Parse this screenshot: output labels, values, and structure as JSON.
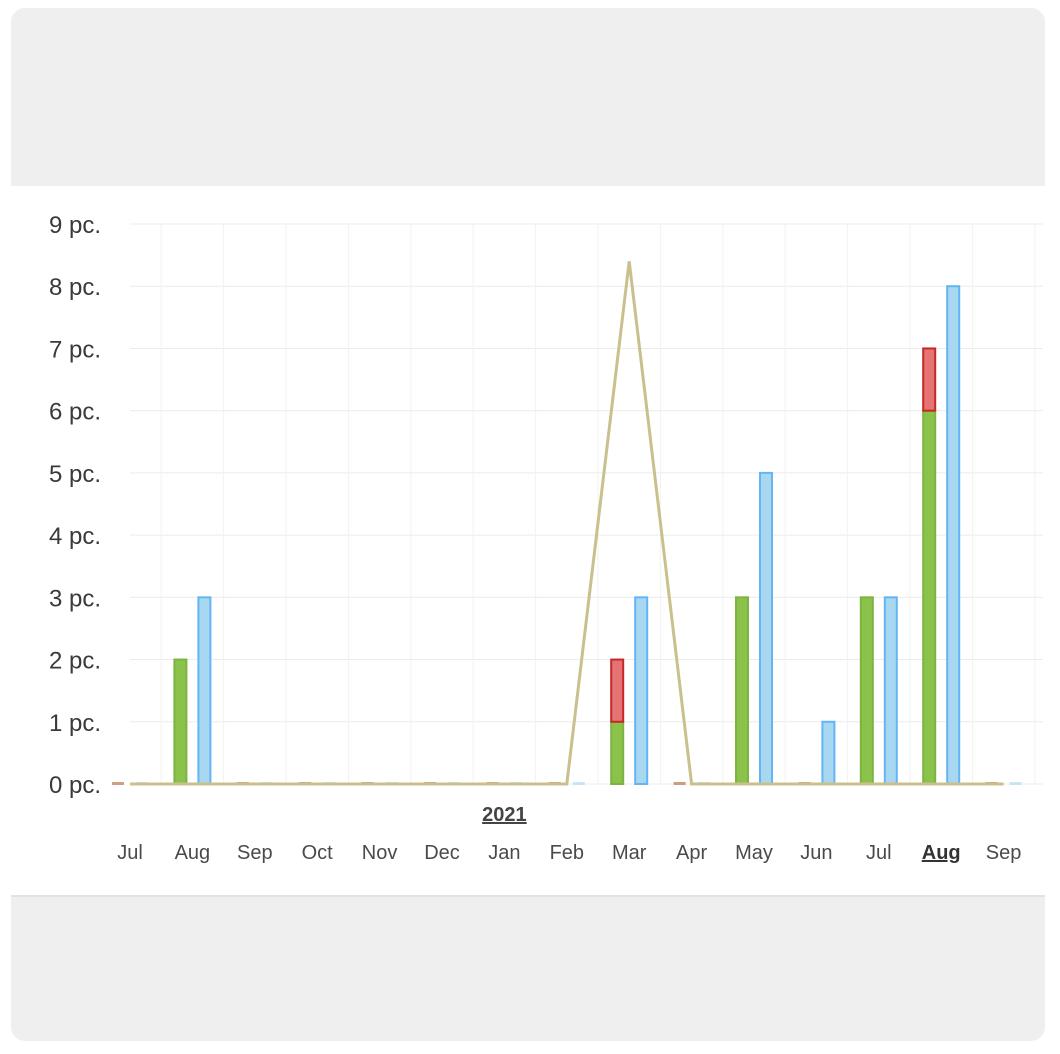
{
  "chart_data": {
    "type": "bar",
    "ylim": [
      0,
      9
    ],
    "y_ticks": [
      "0 pc.",
      "1 pc.",
      "2 pc.",
      "3 pc.",
      "4 pc.",
      "5 pc.",
      "6 pc.",
      "7 pc.",
      "8 pc.",
      "9 pc."
    ],
    "categories": [
      "Jul",
      "Aug",
      "Sep",
      "Oct",
      "Nov",
      "Dec",
      "Jan",
      "Feb",
      "Mar",
      "Apr",
      "May",
      "Jun",
      "Jul",
      "Aug",
      "Sep"
    ],
    "highlighted_category_index": 13,
    "year_label": "2021",
    "year_label_category_index": 6,
    "grid": true,
    "colors": {
      "green": "#8bc34a",
      "red": "#e57373",
      "blue": "#a8d8f0",
      "line": "#d9d2a6"
    },
    "series": [
      {
        "values": [
          0,
          2,
          0,
          0,
          0,
          0,
          0,
          0,
          1,
          0,
          3,
          0,
          3,
          6,
          0
        ],
        "color": "green",
        "stack": "a"
      },
      {
        "values": [
          0,
          0,
          0,
          0,
          0,
          0,
          0,
          0,
          1,
          0,
          0,
          0,
          0,
          1,
          0
        ],
        "color": "red",
        "stack": "a"
      },
      {
        "values": [
          0,
          3,
          0,
          0,
          0,
          0,
          0,
          0,
          3,
          0,
          5,
          1,
          3,
          8,
          0
        ],
        "color": "blue",
        "stack": "b"
      },
      {
        "values": [
          0,
          0,
          0,
          0,
          0,
          0,
          0,
          0,
          8.4,
          0,
          0,
          0,
          0,
          0,
          0
        ],
        "color": "line",
        "type": "line"
      }
    ]
  }
}
